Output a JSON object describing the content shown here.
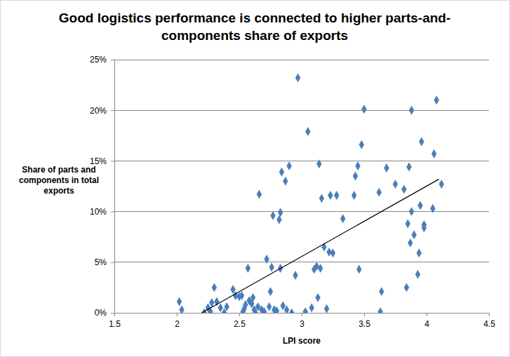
{
  "chart_data": {
    "type": "scatter",
    "title": "Good logistics performance is connected to higher parts-and-components share of exports",
    "x_label": "LPI score",
    "y_label": "Share of parts and components in total exports",
    "xlim": [
      1.5,
      4.5
    ],
    "xticks": [
      1.5,
      2,
      2.5,
      3,
      3.5,
      4,
      4.5
    ],
    "ylim": [
      0,
      25
    ],
    "yticks": [
      {
        "value": 0,
        "label": "0%"
      },
      {
        "value": 5,
        "label": "5%"
      },
      {
        "value": 10,
        "label": "10%"
      },
      {
        "value": 15,
        "label": "15%"
      },
      {
        "value": 20,
        "label": "20%"
      },
      {
        "value": 25,
        "label": "25%"
      }
    ],
    "grid": true,
    "series": [
      {
        "type": "scatter",
        "color": "#4a7ebb",
        "marker": "diamond",
        "x": [
          2.02,
          2.04,
          2.22,
          2.25,
          2.27,
          2.28,
          2.3,
          2.32,
          2.35,
          2.38,
          2.4,
          2.45,
          2.47,
          2.5,
          2.52,
          2.53,
          2.54,
          2.55,
          2.57,
          2.58,
          2.6,
          2.61,
          2.62,
          2.63,
          2.65,
          2.66,
          2.68,
          2.7,
          2.72,
          2.74,
          2.75,
          2.76,
          2.77,
          2.78,
          2.8,
          2.82,
          2.83,
          2.83,
          2.84,
          2.85,
          2.87,
          2.88,
          2.9,
          2.92,
          2.95,
          2.97,
          3.03,
          3.05,
          3.08,
          3.1,
          3.12,
          3.13,
          3.14,
          3.15,
          3.16,
          3.18,
          3.2,
          3.22,
          3.23,
          3.25,
          3.28,
          3.33,
          3.42,
          3.43,
          3.45,
          3.46,
          3.48,
          3.5,
          3.62,
          3.63,
          3.64,
          3.68,
          3.75,
          3.82,
          3.84,
          3.85,
          3.86,
          3.87,
          3.88,
          3.88,
          3.9,
          3.93,
          3.94,
          3.95,
          3.96,
          3.98,
          3.98,
          4.05,
          4.06,
          4.08,
          4.12
        ],
        "values": [
          1.1,
          0.3,
          0.0,
          0.5,
          0.1,
          1.0,
          2.5,
          1.1,
          0.5,
          0.0,
          0.6,
          2.3,
          1.7,
          1.6,
          1.7,
          0.1,
          0.4,
          0.8,
          4.4,
          1.2,
          0.9,
          1.5,
          0.3,
          0.0,
          0.6,
          11.7,
          0.3,
          0.1,
          5.3,
          0.6,
          2.1,
          4.5,
          9.6,
          0.3,
          0.2,
          9.2,
          4.4,
          9.9,
          13.9,
          0.7,
          13.0,
          0.3,
          14.5,
          0.0,
          3.7,
          23.2,
          0.1,
          17.9,
          0.5,
          4.3,
          4.6,
          1.5,
          14.7,
          4.4,
          11.3,
          6.5,
          0.4,
          6.0,
          11.6,
          5.9,
          11.6,
          9.3,
          11.6,
          13.5,
          14.5,
          4.3,
          16.6,
          20.1,
          11.9,
          0.1,
          2.1,
          14.3,
          12.7,
          12.2,
          2.5,
          8.8,
          14.4,
          6.9,
          10.0,
          20.0,
          7.7,
          3.8,
          5.9,
          10.6,
          16.9,
          8.4,
          8.7,
          10.3,
          15.7,
          21.0,
          12.7
        ]
      },
      {
        "type": "line",
        "color": "#000000",
        "line_style": "solid",
        "x": [
          2.2,
          4.1
        ],
        "values": [
          0.0,
          13.2
        ]
      }
    ]
  }
}
